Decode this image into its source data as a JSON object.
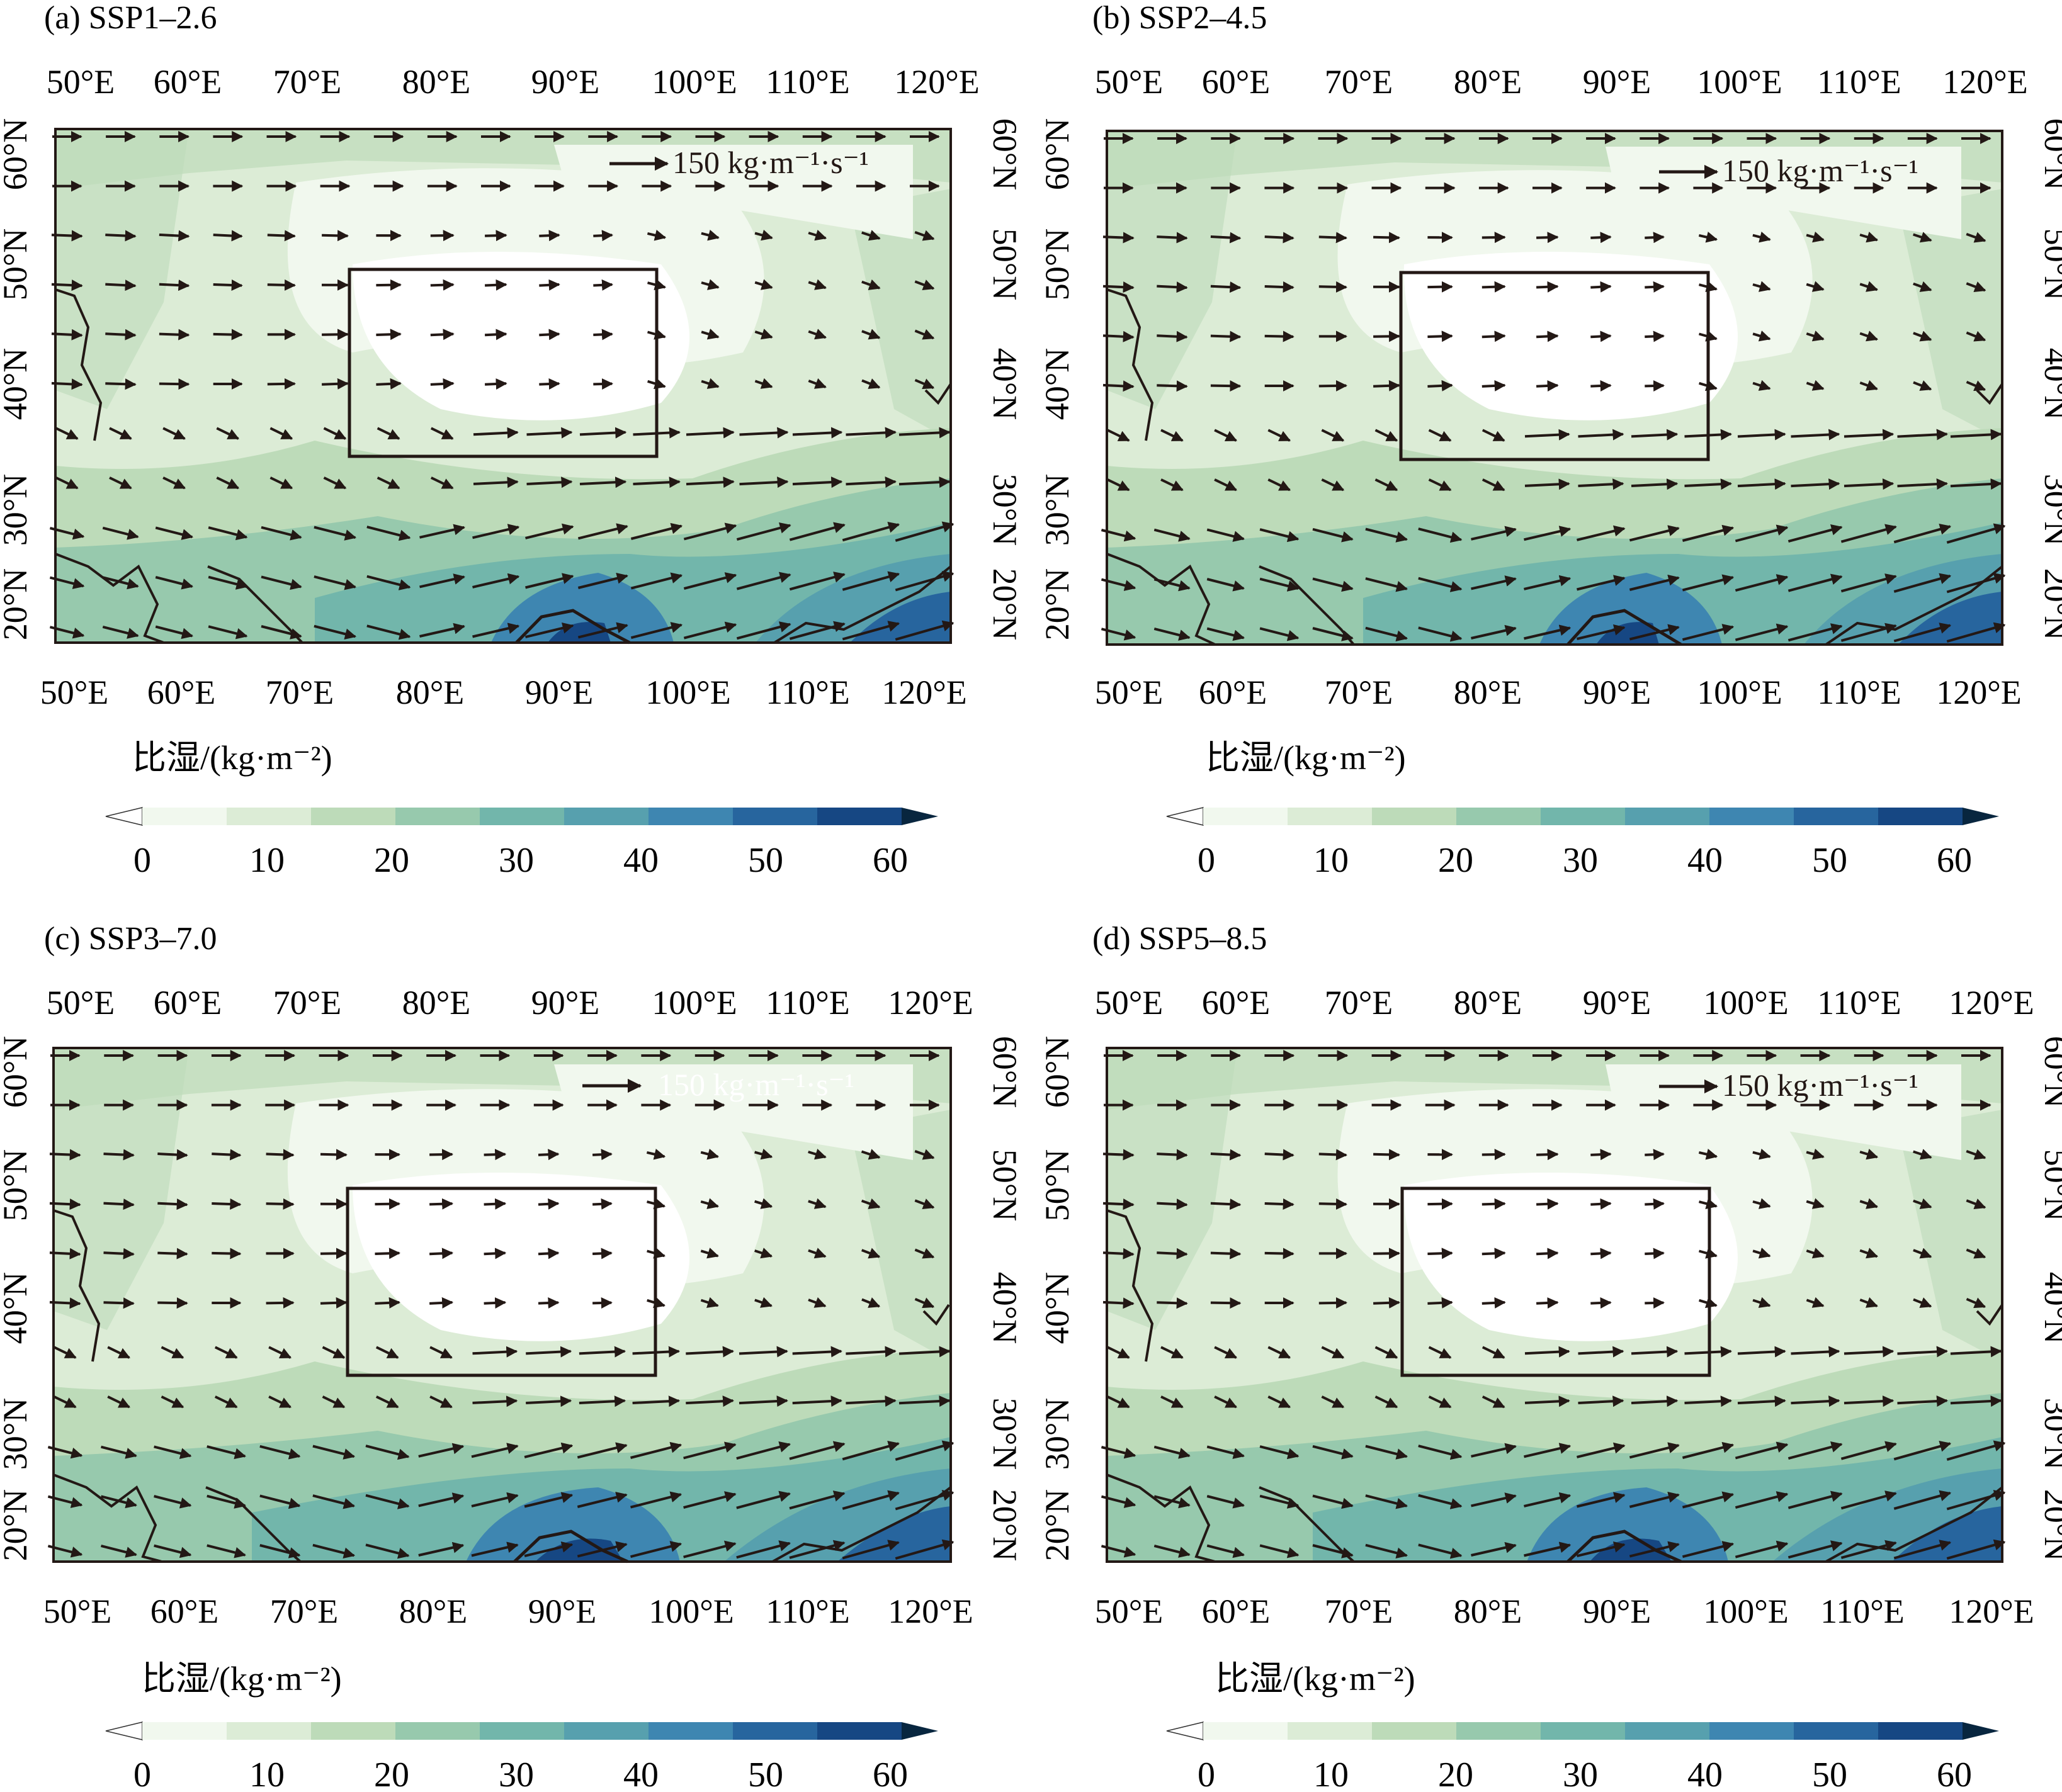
{
  "figure": {
    "panels": [
      {
        "title": "(a) SSP1–2.6",
        "reference_vector_label": "150 kg·m⁻¹·s⁻¹"
      },
      {
        "title": "(b) SSP2–4.5",
        "reference_vector_label": "150 kg·m⁻¹·s⁻¹"
      },
      {
        "title": "(c) SSP3–7.0",
        "reference_vector_label": "150 kg·m⁻¹·s⁻¹"
      },
      {
        "title": "(d) SSP5–8.5",
        "reference_vector_label": "150 kg·m⁻¹·s⁻¹"
      }
    ],
    "lon_labels": [
      "50°E",
      "60°E",
      "70°E",
      "80°E",
      "90°E",
      "100°E",
      "110°E",
      "120°E"
    ],
    "lat_labels": [
      "20°N",
      "30°N",
      "40°N",
      "50°N",
      "60°N"
    ],
    "colorbar": {
      "label": "比湿/(kg·m⁻²)",
      "tick_labels": [
        "0",
        "10",
        "20",
        "30",
        "40",
        "50",
        "60"
      ],
      "colors": [
        "#ffffff",
        "#f1f8ee",
        "#dcecd6",
        "#bddbb9",
        "#97c9ad",
        "#72b6ab",
        "#57a0ae",
        "#3e86b1",
        "#27659e",
        "#164783",
        "#08263f"
      ]
    },
    "map_extent": {
      "lon": [
        48,
        122
      ],
      "lat": [
        18,
        62
      ]
    },
    "study_box": {
      "lon": [
        72,
        97
      ],
      "lat": [
        35,
        50
      ]
    }
  }
}
